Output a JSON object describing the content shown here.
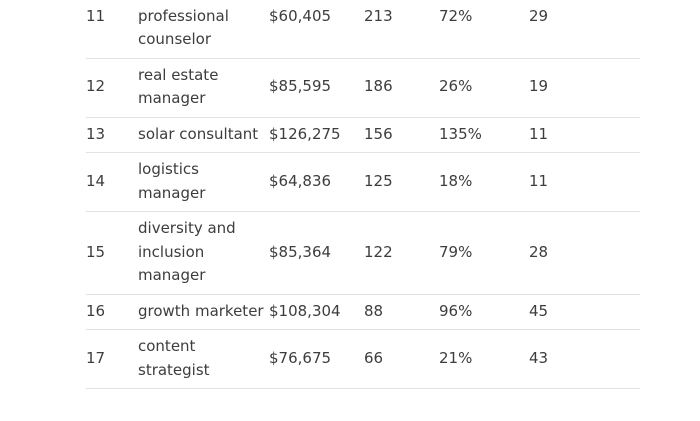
{
  "table": {
    "rows": [
      {
        "rank": "11",
        "job": "licensed professional counselor",
        "salary": "$60,405",
        "openings": "213",
        "growth": "72%",
        "other": "29"
      },
      {
        "rank": "12",
        "job": "real estate manager",
        "salary": "$85,595",
        "openings": "186",
        "growth": "26%",
        "other": "19"
      },
      {
        "rank": "13",
        "job": "solar consultant",
        "salary": "$126,275",
        "openings": "156",
        "growth": "135%",
        "other": "11"
      },
      {
        "rank": "14",
        "job": "logistics manager",
        "salary": "$64,836",
        "openings": "125",
        "growth": "18%",
        "other": "11"
      },
      {
        "rank": "15",
        "job": "diversity and inclusion manager",
        "salary": "$85,364",
        "openings": "122",
        "growth": "79%",
        "other": "28"
      },
      {
        "rank": "16",
        "job": "growth marketer",
        "salary": "$108,304",
        "openings": "88",
        "growth": "96%",
        "other": "45"
      },
      {
        "rank": "17",
        "job": "content strategist",
        "salary": "$76,675",
        "openings": "66",
        "growth": "21%",
        "other": "43"
      }
    ]
  }
}
